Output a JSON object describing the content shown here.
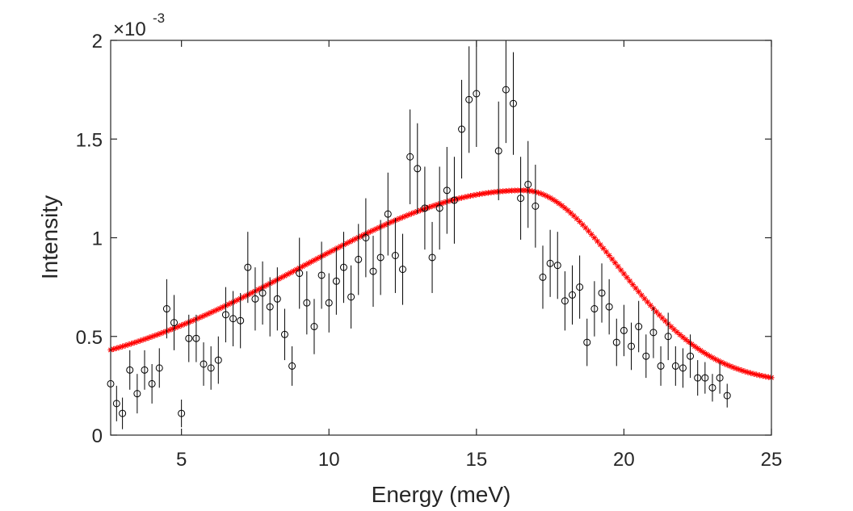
{
  "chart_data": {
    "type": "scatter",
    "title": "",
    "xlabel": "Energy (meV)",
    "ylabel": "Intensity",
    "xlim": [
      2.6,
      25
    ],
    "ylim": [
      0,
      0.002
    ],
    "x_ticks": [
      5,
      10,
      15,
      20,
      25
    ],
    "x_tick_labels": [
      "5",
      "10",
      "15",
      "20",
      "25"
    ],
    "y_ticks": [
      0,
      0.0005,
      0.001,
      0.0015,
      0.002
    ],
    "y_tick_labels": [
      "0",
      "0.5",
      "1",
      "1.5",
      "2"
    ],
    "y_multiplier_base": "×10",
    "y_multiplier_exp": "-3",
    "grid": false,
    "colors": {
      "data": "#000000",
      "fit": "#ff0000",
      "axis": "#262626"
    },
    "series": [
      {
        "name": "data",
        "marker": "o",
        "x": [
          2.6,
          2.8,
          3.0,
          3.25,
          3.5,
          3.75,
          4.0,
          4.25,
          4.5,
          4.75,
          5.0,
          5.25,
          5.5,
          5.75,
          6.0,
          6.25,
          6.5,
          6.75,
          7.0,
          7.25,
          7.5,
          7.75,
          8.0,
          8.25,
          8.5,
          8.75,
          9.0,
          9.25,
          9.5,
          9.75,
          10.0,
          10.25,
          10.5,
          10.75,
          11.0,
          11.25,
          11.5,
          11.75,
          12.0,
          12.25,
          12.5,
          12.75,
          13.0,
          13.25,
          13.5,
          13.75,
          14.0,
          14.25,
          14.5,
          14.75,
          15.0,
          15.75,
          16.0,
          16.25,
          16.5,
          16.75,
          17.0,
          17.25,
          17.5,
          17.75,
          18.0,
          18.25,
          18.5,
          18.75,
          19.0,
          19.25,
          19.5,
          19.75,
          20.0,
          20.25,
          20.5,
          20.75,
          21.0,
          21.25,
          21.5,
          21.75,
          22.0,
          22.25,
          22.5,
          22.75,
          23.0,
          23.25,
          23.5
        ],
        "y": [
          0.00026,
          0.00016,
          0.00011,
          0.00033,
          0.00021,
          0.00033,
          0.00026,
          0.00034,
          0.00064,
          0.00057,
          0.00011,
          0.00049,
          0.00049,
          0.00036,
          0.00034,
          0.00038,
          0.00061,
          0.00059,
          0.00058,
          0.00085,
          0.00069,
          0.00072,
          0.00065,
          0.00069,
          0.00051,
          0.00035,
          0.00082,
          0.00067,
          0.00055,
          0.00081,
          0.00067,
          0.00078,
          0.00085,
          0.0007,
          0.00089,
          0.001,
          0.00083,
          0.0009,
          0.00112,
          0.00091,
          0.00084,
          0.00141,
          0.00135,
          0.00115,
          0.0009,
          0.00115,
          0.00124,
          0.00119,
          0.00155,
          0.0017,
          0.00173,
          0.00144,
          0.00175,
          0.00168,
          0.0012,
          0.00127,
          0.00116,
          0.0008,
          0.00087,
          0.00086,
          0.00068,
          0.00071,
          0.00075,
          0.00047,
          0.00064,
          0.00072,
          0.00065,
          0.00047,
          0.00053,
          0.00045,
          0.00055,
          0.0004,
          0.00052,
          0.00035,
          0.0005,
          0.00035,
          0.00034,
          0.0004,
          0.00029,
          0.00029,
          0.00024,
          0.00029,
          0.0002
        ],
        "err": [
          0.00012,
          9e-05,
          8e-05,
          0.0001,
          0.0001,
          0.0001,
          0.0001,
          0.0001,
          0.00015,
          0.00014,
          7e-05,
          0.00012,
          0.00012,
          0.00011,
          0.00011,
          0.00012,
          0.00014,
          0.00014,
          0.00014,
          0.00018,
          0.00016,
          0.00016,
          0.00015,
          0.00016,
          0.00013,
          0.0001,
          0.00018,
          0.00016,
          0.00014,
          0.00017,
          0.00015,
          0.00017,
          0.00018,
          0.00016,
          0.00018,
          0.0002,
          0.00018,
          0.00019,
          0.00021,
          0.00019,
          0.00018,
          0.00024,
          0.00023,
          0.00021,
          0.00018,
          0.00021,
          0.00022,
          0.00022,
          0.00025,
          0.00027,
          0.00027,
          0.00025,
          0.00027,
          0.00026,
          0.00021,
          0.00022,
          0.00021,
          0.00016,
          0.00017,
          0.00017,
          0.00015,
          0.00015,
          0.00016,
          0.00012,
          0.00014,
          0.00015,
          0.00014,
          0.00012,
          0.00013,
          0.00012,
          0.00013,
          0.00011,
          0.00013,
          0.0001,
          0.00012,
          0.0001,
          0.0001,
          0.00011,
          9e-05,
          8e-05,
          7e-05,
          8e-05,
          6e-05
        ]
      },
      {
        "name": "fit",
        "marker": "*",
        "x_start": 2.6,
        "x_end": 25,
        "x_step": 0.1,
        "model": "skewed_peak",
        "peak_center": 16.6,
        "peak_value": 0.00124,
        "base_value": 0.00026,
        "left_width": 7.5,
        "right_width": 3.2
      }
    ]
  }
}
